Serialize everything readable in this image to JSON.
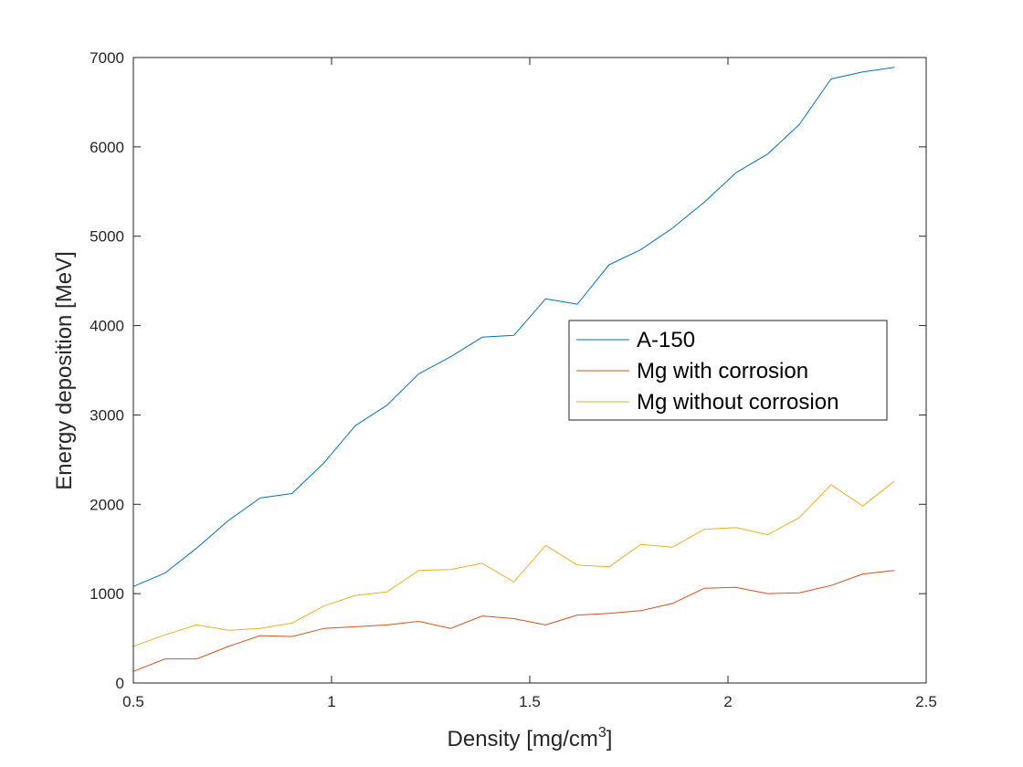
{
  "chart_data": {
    "type": "line",
    "xlabel": "Density [mg/cm",
    "xlabel_superscript": "3",
    "xlabel_suffix": "]",
    "ylabel": "Energy deposition [MeV]",
    "xlim": [
      0.5,
      2.5
    ],
    "ylim": [
      0,
      7000
    ],
    "xticks": [
      0.5,
      1,
      1.5,
      2,
      2.5
    ],
    "xtick_labels": [
      "0.5",
      "1",
      "1.5",
      "2",
      "2.5"
    ],
    "yticks": [
      0,
      1000,
      2000,
      3000,
      4000,
      5000,
      6000,
      7000
    ],
    "ytick_labels": [
      "0",
      "1000",
      "2000",
      "3000",
      "4000",
      "5000",
      "6000",
      "7000"
    ],
    "grid": false,
    "legend_position": "center-right",
    "x": [
      0.5,
      0.58,
      0.66,
      0.74,
      0.82,
      0.9,
      0.98,
      1.06,
      1.14,
      1.22,
      1.3,
      1.38,
      1.46,
      1.54,
      1.62,
      1.7,
      1.78,
      1.86,
      1.94,
      2.02,
      2.1,
      2.18,
      2.26,
      2.34,
      2.42
    ],
    "series": [
      {
        "name": "A-150",
        "color": "#0072BD",
        "values": [
          1080,
          1230,
          1510,
          1820,
          2070,
          2120,
          2460,
          2880,
          3110,
          3460,
          3650,
          3870,
          3890,
          4300,
          4240,
          4680,
          4850,
          5090,
          5380,
          5710,
          5920,
          6250,
          6760,
          6840,
          6890
        ]
      },
      {
        "name": "Mg with corrosion",
        "color": "#D95319",
        "values": [
          130,
          270,
          270,
          410,
          530,
          520,
          610,
          630,
          650,
          690,
          610,
          750,
          720,
          650,
          760,
          780,
          810,
          890,
          1060,
          1070,
          1000,
          1010,
          1090,
          1220,
          1260
        ]
      },
      {
        "name": "Mg without corrosion",
        "color": "#EDB120",
        "values": [
          410,
          540,
          650,
          590,
          610,
          670,
          860,
          980,
          1020,
          1260,
          1270,
          1340,
          1130,
          1540,
          1320,
          1300,
          1550,
          1520,
          1720,
          1740,
          1660,
          1850,
          2220,
          1980,
          2260
        ]
      }
    ]
  }
}
